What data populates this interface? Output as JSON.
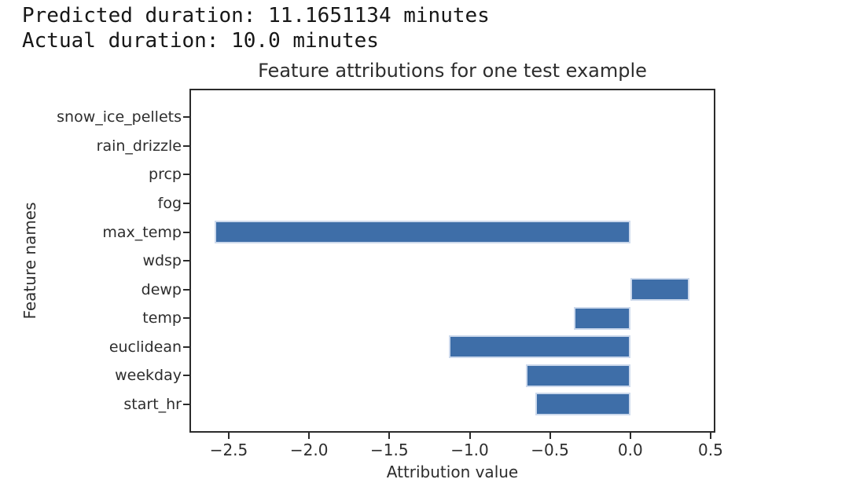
{
  "console_output": {
    "line1": "Predicted duration: 11.1651134 minutes",
    "line2": "Actual duration: 10.0 minutes"
  },
  "chart_data": {
    "type": "bar",
    "orientation": "horizontal",
    "title": "Feature attributions for one test example",
    "xlabel": "Attribution value",
    "ylabel": "Feature names",
    "categories_top_to_bottom": [
      "snow_ice_pellets",
      "rain_drizzle",
      "prcp",
      "fog",
      "max_temp",
      "wdsp",
      "dewp",
      "temp",
      "euclidean",
      "weekday",
      "start_hr"
    ],
    "values_top_to_bottom": [
      0,
      0,
      0,
      0,
      -2.59,
      0,
      0.37,
      -0.35,
      -1.13,
      -0.65,
      -0.59
    ],
    "xlim": [
      -2.735,
      0.52
    ],
    "xticks": [
      -2.5,
      -2.0,
      -1.5,
      -1.0,
      -0.5,
      0.0,
      0.5
    ],
    "xtick_labels": [
      "−2.5",
      "−2.0",
      "−1.5",
      "−1.0",
      "−0.5",
      "0.0",
      "0.5"
    ],
    "grid": false,
    "legend": null,
    "bar_color": "#3e6ea8",
    "bar_edge_color": "#ccd9ec",
    "axis_color": "#2b2b2b",
    "text_color": "#2d2d2d"
  }
}
